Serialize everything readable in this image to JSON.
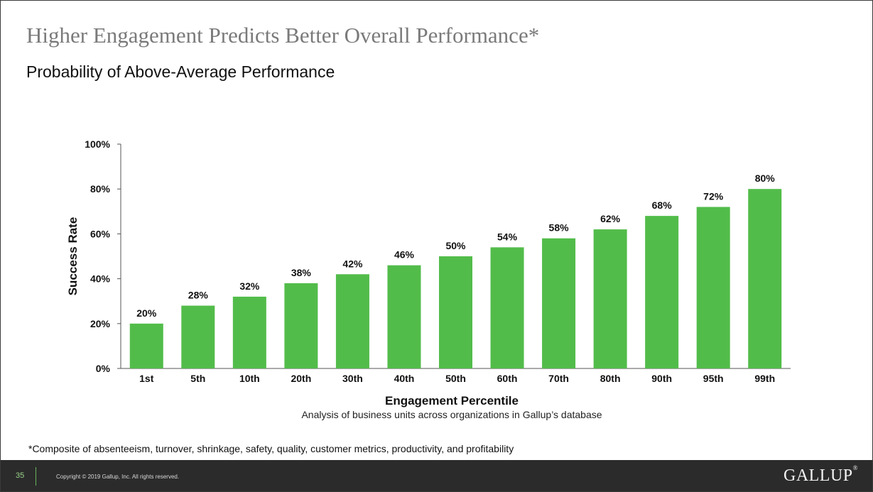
{
  "slide": {
    "title": "Higher Engagement Predicts Better Overall Performance*",
    "subtitle": "Probability of Above-Average Performance",
    "footnote": "*Composite of absenteeism, turnover, shrinkage, safety, quality, customer metrics, productivity, and profitability",
    "page_number": "35",
    "copyright": "Copyright © 2019 Gallup, Inc. All rights reserved.",
    "logo": "GALLUP",
    "logo_mark": "®"
  },
  "chart_data": {
    "type": "bar",
    "title": "Probability of Above-Average Performance",
    "categories": [
      "1st",
      "5th",
      "10th",
      "20th",
      "30th",
      "40th",
      "50th",
      "60th",
      "70th",
      "80th",
      "90th",
      "95th",
      "99th"
    ],
    "values": [
      20,
      28,
      32,
      38,
      42,
      46,
      50,
      54,
      58,
      62,
      68,
      72,
      80
    ],
    "value_labels": [
      "20%",
      "28%",
      "32%",
      "38%",
      "42%",
      "46%",
      "50%",
      "54%",
      "58%",
      "62%",
      "68%",
      "72%",
      "80%"
    ],
    "xlabel": "Engagement Percentile",
    "xlabel_caption": "Analysis of business units across organizations in Gallup’s database",
    "ylabel": "Success Rate",
    "ylim": [
      0,
      100
    ],
    "yticks": [
      0,
      20,
      40,
      60,
      80,
      100
    ],
    "ytick_labels": [
      "0%",
      "20%",
      "40%",
      "60%",
      "80%",
      "100%"
    ],
    "grid": false,
    "legend": "none",
    "bar_color": "#52bc4a"
  }
}
